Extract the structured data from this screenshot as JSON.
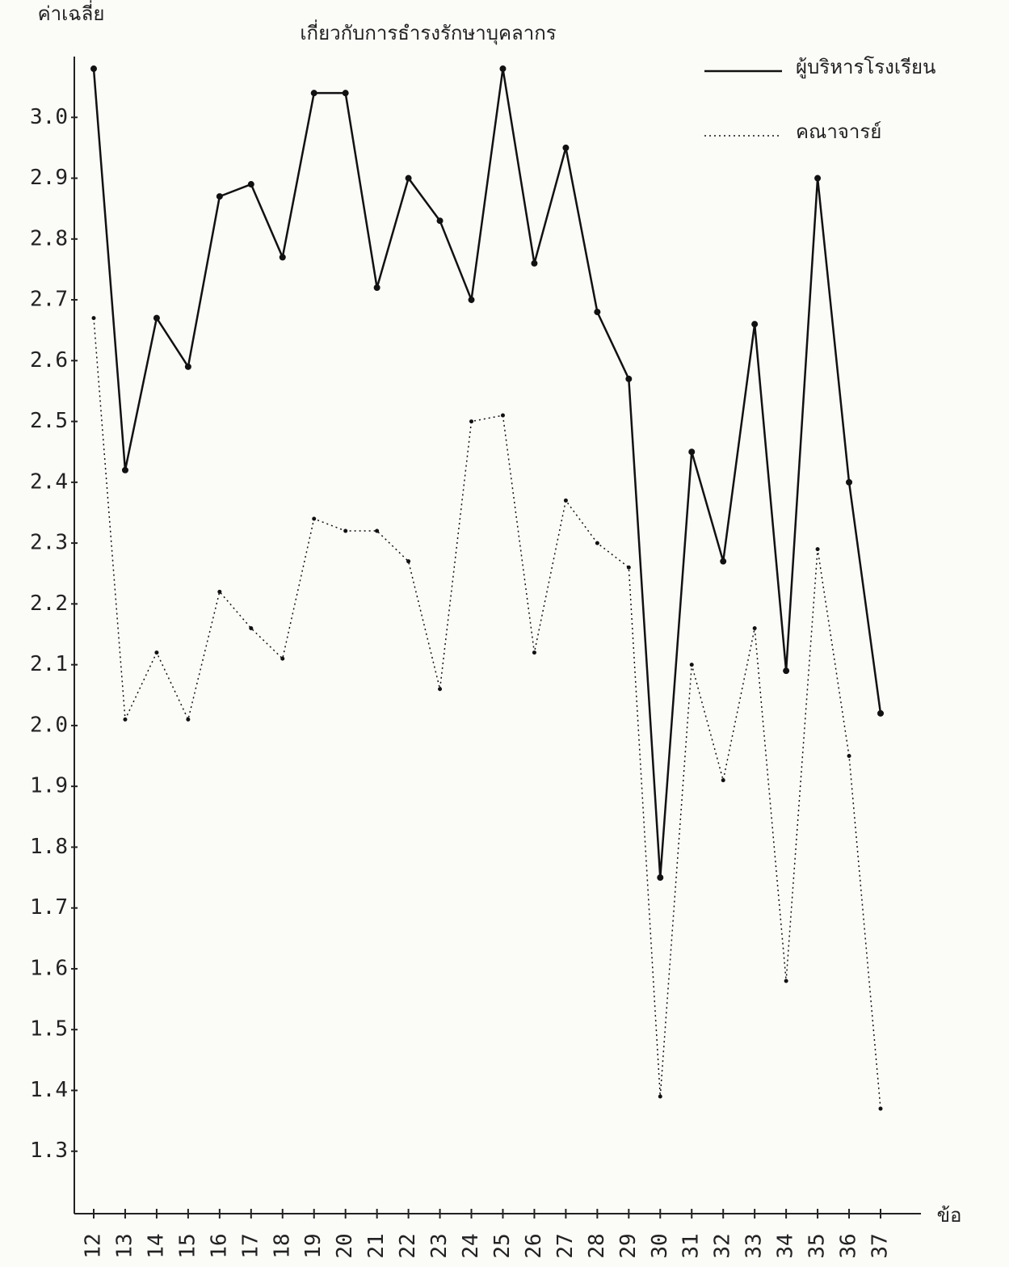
{
  "chart_data": {
    "type": "line",
    "title": "เกี่ยวกับการธำรงรักษาบุคลากร",
    "y_label": "ค่าเฉลี่ย",
    "x_label": "ข้อ",
    "categories": [
      "12",
      "13",
      "14",
      "15",
      "16",
      "17",
      "18",
      "19",
      "20",
      "21",
      "22",
      "23",
      "24",
      "25",
      "26",
      "27",
      "28",
      "29",
      "30",
      "31",
      "32",
      "33",
      "34",
      "35",
      "36",
      "37"
    ],
    "series": [
      {
        "name": "ผู้บริหารโรงเรียน",
        "color": "#111111",
        "style": "solid",
        "values": [
          3.08,
          2.42,
          2.67,
          2.59,
          2.87,
          2.89,
          2.77,
          3.04,
          3.04,
          2.72,
          2.9,
          2.83,
          2.7,
          3.08,
          2.76,
          2.95,
          2.68,
          2.57,
          1.75,
          2.45,
          2.27,
          2.66,
          2.09,
          2.9,
          2.4,
          2.02
        ]
      },
      {
        "name": "คณาจารย์",
        "color": "#111111",
        "style": "dotted",
        "values": [
          2.67,
          2.01,
          2.12,
          2.01,
          2.22,
          2.16,
          2.11,
          2.34,
          2.32,
          2.32,
          2.27,
          2.06,
          2.5,
          2.51,
          2.12,
          2.37,
          2.3,
          2.26,
          1.39,
          2.1,
          1.91,
          2.16,
          1.58,
          2.29,
          1.95,
          1.37
        ]
      }
    ],
    "ylim": [
      1.2,
      3.1
    ],
    "yticks": [
      {
        "value": 1.3,
        "label": "1.3"
      },
      {
        "value": 1.4,
        "label": "1.4"
      },
      {
        "value": 1.5,
        "label": "1.5"
      },
      {
        "value": 1.6,
        "label": "1.6"
      },
      {
        "value": 1.7,
        "label": "1.7"
      },
      {
        "value": 1.8,
        "label": "1.8"
      },
      {
        "value": 1.9,
        "label": "1.9"
      },
      {
        "value": 2.0,
        "label": "2.0"
      },
      {
        "value": 2.1,
        "label": "2.1"
      },
      {
        "value": 2.2,
        "label": "2.2"
      },
      {
        "value": 2.3,
        "label": "2.3"
      },
      {
        "value": 2.4,
        "label": "2.4"
      },
      {
        "value": 2.5,
        "label": "2.5"
      },
      {
        "value": 2.6,
        "label": "2.6"
      },
      {
        "value": 2.7,
        "label": "2.7"
      },
      {
        "value": 2.8,
        "label": "2.8"
      },
      {
        "value": 2.9,
        "label": "2.9"
      },
      {
        "value": 3.0,
        "label": "3.0"
      }
    ],
    "grid": false
  }
}
